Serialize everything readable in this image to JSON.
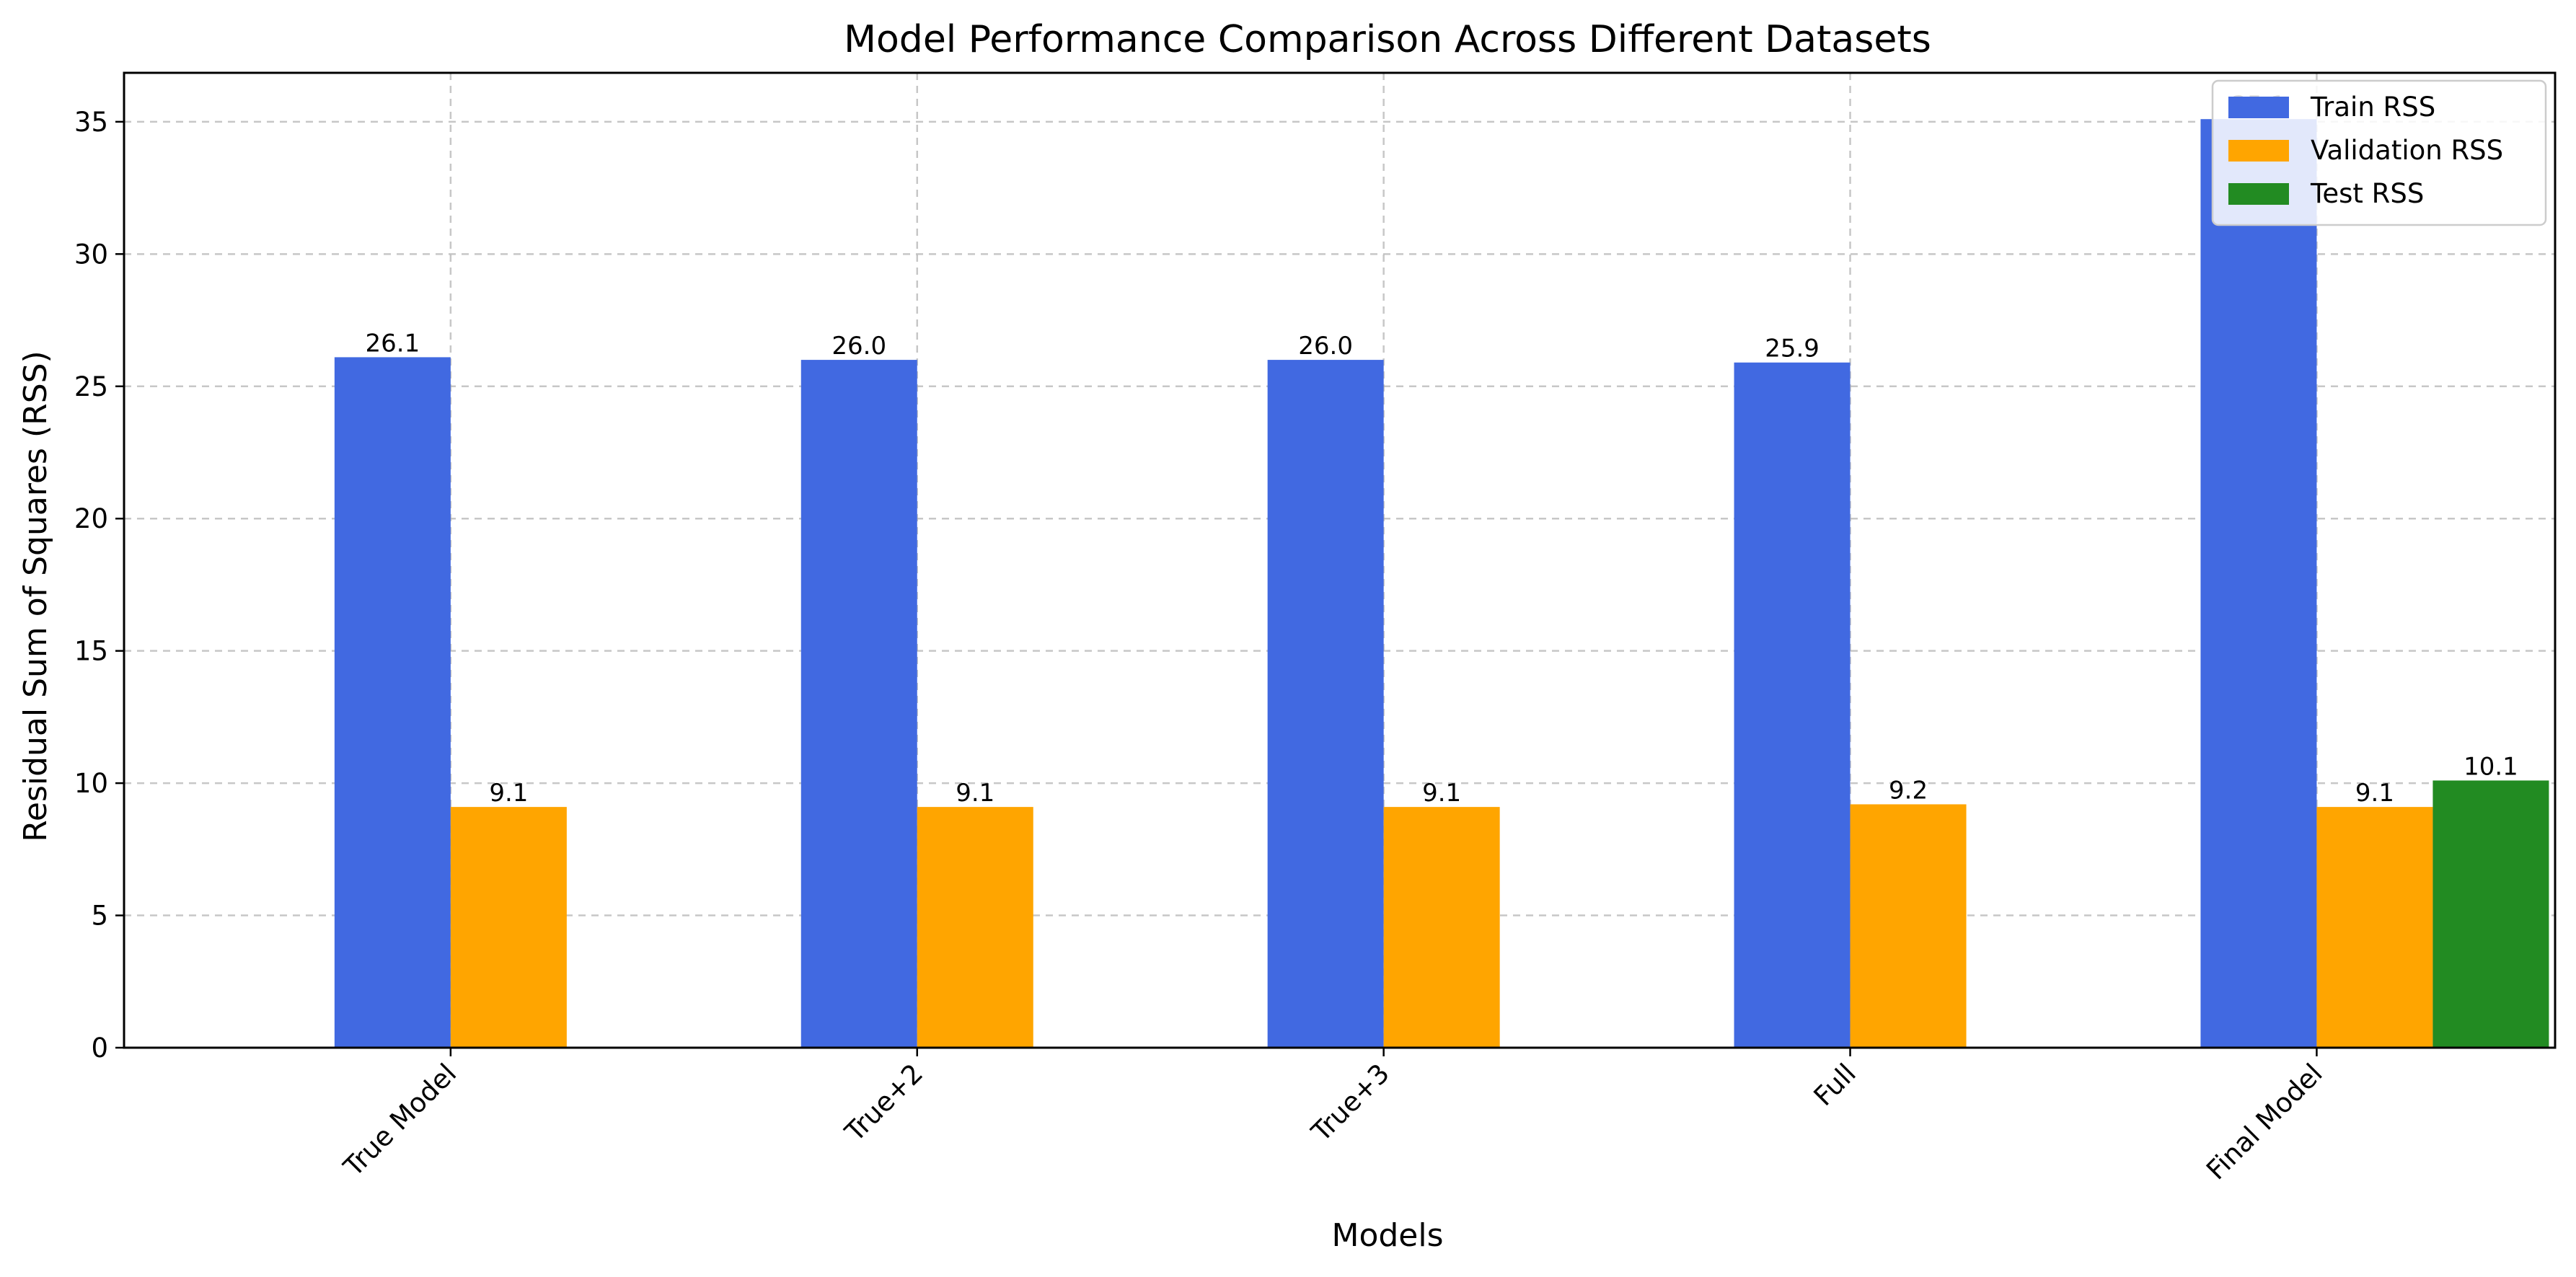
{
  "chart_data": {
    "type": "bar",
    "title": "Model Performance Comparison Across Different Datasets",
    "xlabel": "Models",
    "ylabel": "Residual Sum of Squares (RSS)",
    "categories": [
      "True Model",
      "True+2",
      "True+3",
      "Full",
      "Final Model"
    ],
    "series": [
      {
        "name": "Train RSS",
        "color": "#4169e1",
        "values": [
          26.1,
          26.0,
          26.0,
          25.9,
          35.1
        ],
        "labels": [
          "26.1",
          "26.0",
          "26.0",
          "25.9",
          "35.1"
        ]
      },
      {
        "name": "Validation RSS",
        "color": "#ffa500",
        "values": [
          9.1,
          9.1,
          9.1,
          9.2,
          9.1
        ],
        "labels": [
          "9.1",
          "9.1",
          "9.1",
          "9.2",
          "9.1"
        ]
      },
      {
        "name": "Test RSS",
        "color": "#228b22",
        "values": [
          null,
          null,
          null,
          null,
          10.1
        ],
        "labels": [
          null,
          null,
          null,
          null,
          "10.1"
        ]
      }
    ],
    "ylim": [
      0,
      36.85
    ],
    "yticks": [
      0,
      5,
      10,
      15,
      20,
      25,
      30,
      35
    ],
    "grid": true,
    "legend_position": "top-right"
  }
}
